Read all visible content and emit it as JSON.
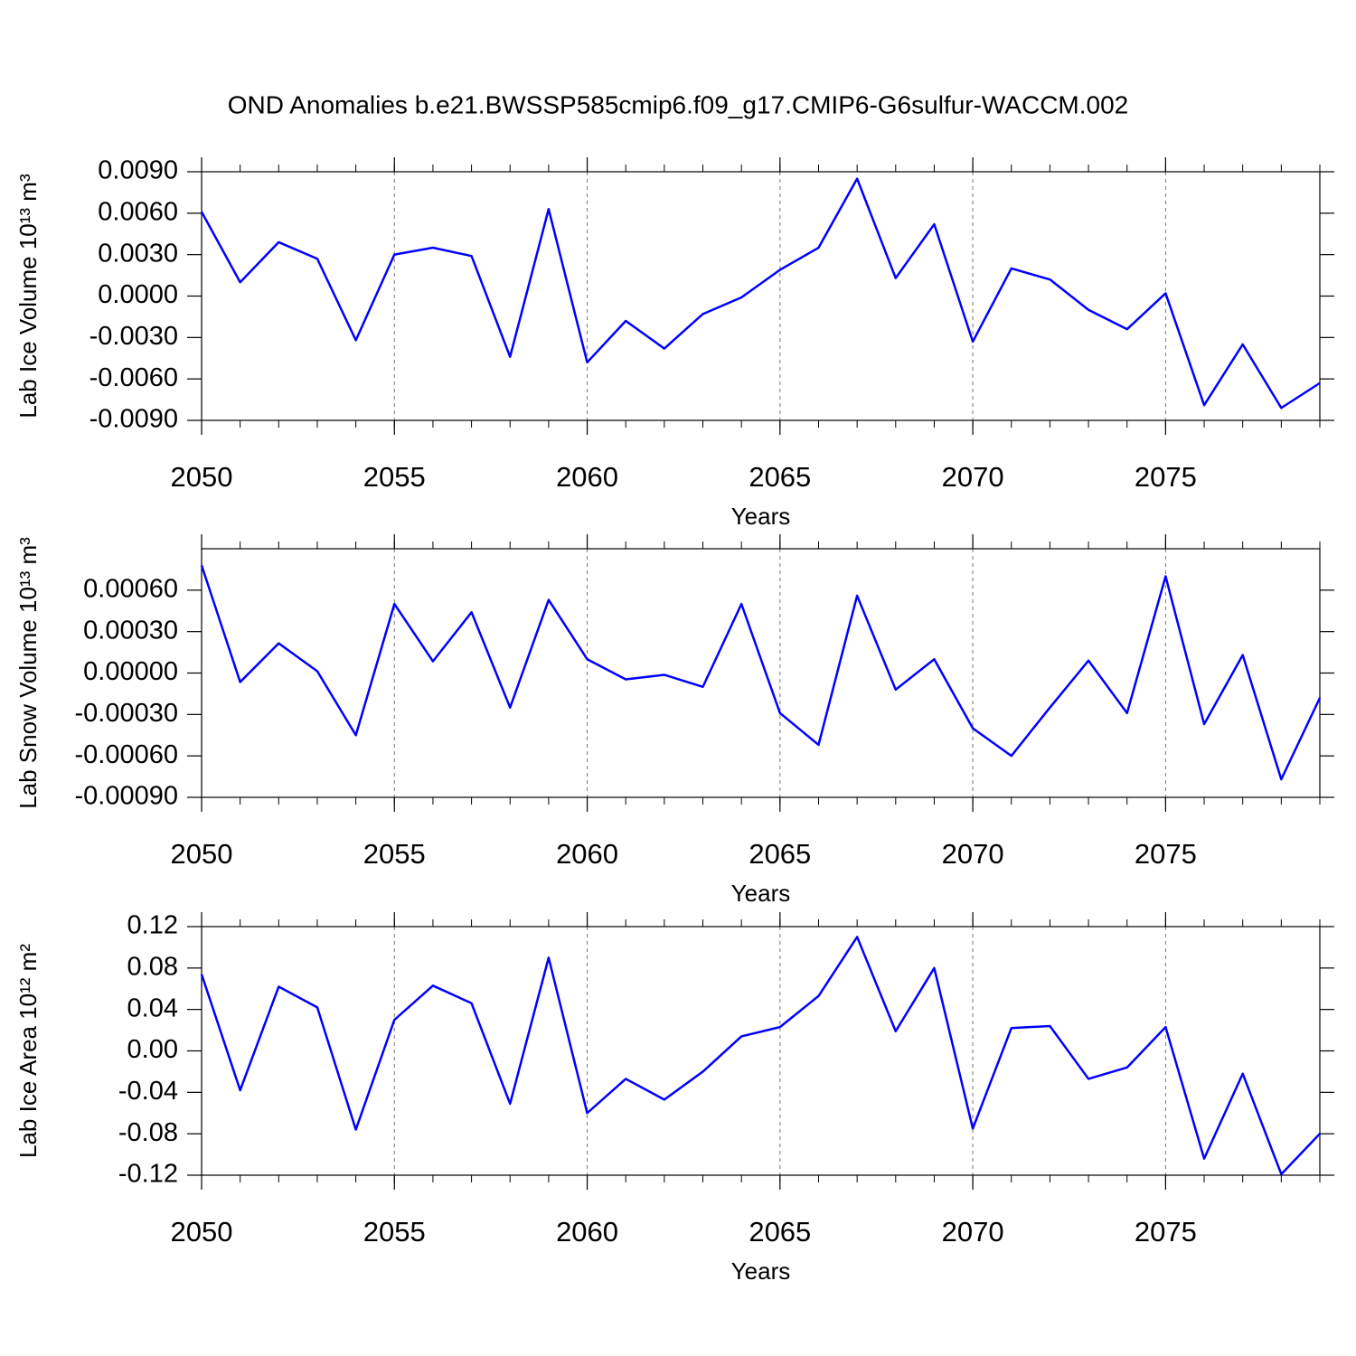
{
  "title": "OND Anomalies b.e21.BWSSP585cmip6.f09_g17.CMIP6-G6sulfur-WACCM.002",
  "chart_data": [
    {
      "type": "line",
      "ylabel": "Lab Ice Volume 10¹³ m³",
      "xlabel": "Years",
      "x": [
        2050,
        2051,
        2052,
        2053,
        2054,
        2055,
        2056,
        2057,
        2058,
        2059,
        2060,
        2061,
        2062,
        2063,
        2064,
        2065,
        2066,
        2067,
        2068,
        2069,
        2070,
        2071,
        2072,
        2073,
        2074,
        2075,
        2076,
        2077,
        2078,
        2079
      ],
      "series": [
        {
          "color": "#0000ff",
          "values": [
            0.0061,
            0.001,
            0.0039,
            0.0027,
            -0.0032,
            0.003,
            0.0035,
            0.0029,
            -0.0044,
            0.0063,
            -0.0048,
            -0.0018,
            -0.0038,
            -0.0013,
            -0.0001,
            0.0019,
            0.0035,
            0.0085,
            0.0013,
            0.0052,
            -0.0033,
            0.002,
            0.0012,
            -0.001,
            -0.0024,
            0.0002,
            -0.0079,
            -0.0035,
            -0.0081,
            -0.0063
          ]
        }
      ],
      "xlim": [
        2050,
        2079
      ],
      "xticks": [
        2050,
        2055,
        2060,
        2065,
        2070,
        2075
      ],
      "ylim": [
        -0.009,
        0.009
      ],
      "yticks": [
        {
          "value": -0.009,
          "label": "-0.0090"
        },
        {
          "value": -0.006,
          "label": "-0.0060"
        },
        {
          "value": -0.003,
          "label": "-0.0030"
        },
        {
          "value": 0,
          "label": "0.0000"
        },
        {
          "value": 0.003,
          "label": "0.0030"
        },
        {
          "value": 0.006,
          "label": "0.0060"
        },
        {
          "value": 0.009,
          "label": "0.0090"
        }
      ],
      "xgrid": true
    },
    {
      "type": "line",
      "ylabel": "Lab Snow Volume 10¹³ m³",
      "xlabel": "Years",
      "x": [
        2050,
        2051,
        2052,
        2053,
        2054,
        2055,
        2056,
        2057,
        2058,
        2059,
        2060,
        2061,
        2062,
        2063,
        2064,
        2065,
        2066,
        2067,
        2068,
        2069,
        2070,
        2071,
        2072,
        2073,
        2074,
        2075,
        2076,
        2077,
        2078,
        2079
      ],
      "series": [
        {
          "color": "#0000ff",
          "values": [
            0.00078,
            -6.5e-05,
            0.000215,
            1.3e-05,
            -0.00045,
            0.0005,
            8.5e-05,
            0.00044,
            -0.00025,
            0.00053,
            0.0001,
            -4.6e-05,
            -1.3e-05,
            -0.0001,
            0.0005,
            -0.00029,
            -0.00052,
            0.00056,
            -0.00012,
            0.0001,
            -0.0004,
            -0.0006,
            -0.00025,
            9e-05,
            -0.00029,
            0.0007,
            -0.00037,
            0.00013,
            -0.00077,
            -0.00018
          ]
        }
      ],
      "xlim": [
        2050,
        2079
      ],
      "xticks": [
        2050,
        2055,
        2060,
        2065,
        2070,
        2075
      ],
      "ylim": [
        -0.0009,
        0.0009
      ],
      "yticks": [
        {
          "value": -0.0009,
          "label": "-0.00090"
        },
        {
          "value": -0.0006,
          "label": "-0.00060"
        },
        {
          "value": -0.0003,
          "label": "-0.00030"
        },
        {
          "value": 0,
          "label": "0.00000"
        },
        {
          "value": 0.0003,
          "label": "0.00030"
        },
        {
          "value": 0.0006,
          "label": "0.00060"
        }
      ],
      "xgrid": true
    },
    {
      "type": "line",
      "ylabel": "Lab Ice Area 10¹² m²",
      "xlabel": "Years",
      "x": [
        2050,
        2051,
        2052,
        2053,
        2054,
        2055,
        2056,
        2057,
        2058,
        2059,
        2060,
        2061,
        2062,
        2063,
        2064,
        2065,
        2066,
        2067,
        2068,
        2069,
        2070,
        2071,
        2072,
        2073,
        2074,
        2075,
        2076,
        2077,
        2078,
        2079
      ],
      "series": [
        {
          "color": "#0000ff",
          "values": [
            0.074,
            -0.038,
            0.062,
            0.042,
            -0.076,
            0.03,
            0.063,
            0.046,
            -0.051,
            0.09,
            -0.06,
            -0.027,
            -0.047,
            -0.02,
            0.014,
            0.023,
            0.053,
            0.11,
            0.019,
            0.08,
            -0.075,
            0.022,
            0.024,
            -0.027,
            -0.016,
            0.023,
            -0.104,
            -0.022,
            -0.119,
            -0.08
          ]
        }
      ],
      "xlim": [
        2050,
        2079
      ],
      "xticks": [
        2050,
        2055,
        2060,
        2065,
        2070,
        2075
      ],
      "ylim": [
        -0.12,
        0.12
      ],
      "yticks": [
        {
          "value": -0.12,
          "label": "-0.12"
        },
        {
          "value": -0.08,
          "label": "-0.08"
        },
        {
          "value": -0.04,
          "label": "-0.04"
        },
        {
          "value": 0,
          "label": "0.00"
        },
        {
          "value": 0.04,
          "label": "0.04"
        },
        {
          "value": 0.08,
          "label": "0.08"
        },
        {
          "value": 0.12,
          "label": "0.12"
        }
      ],
      "xgrid": true
    }
  ]
}
